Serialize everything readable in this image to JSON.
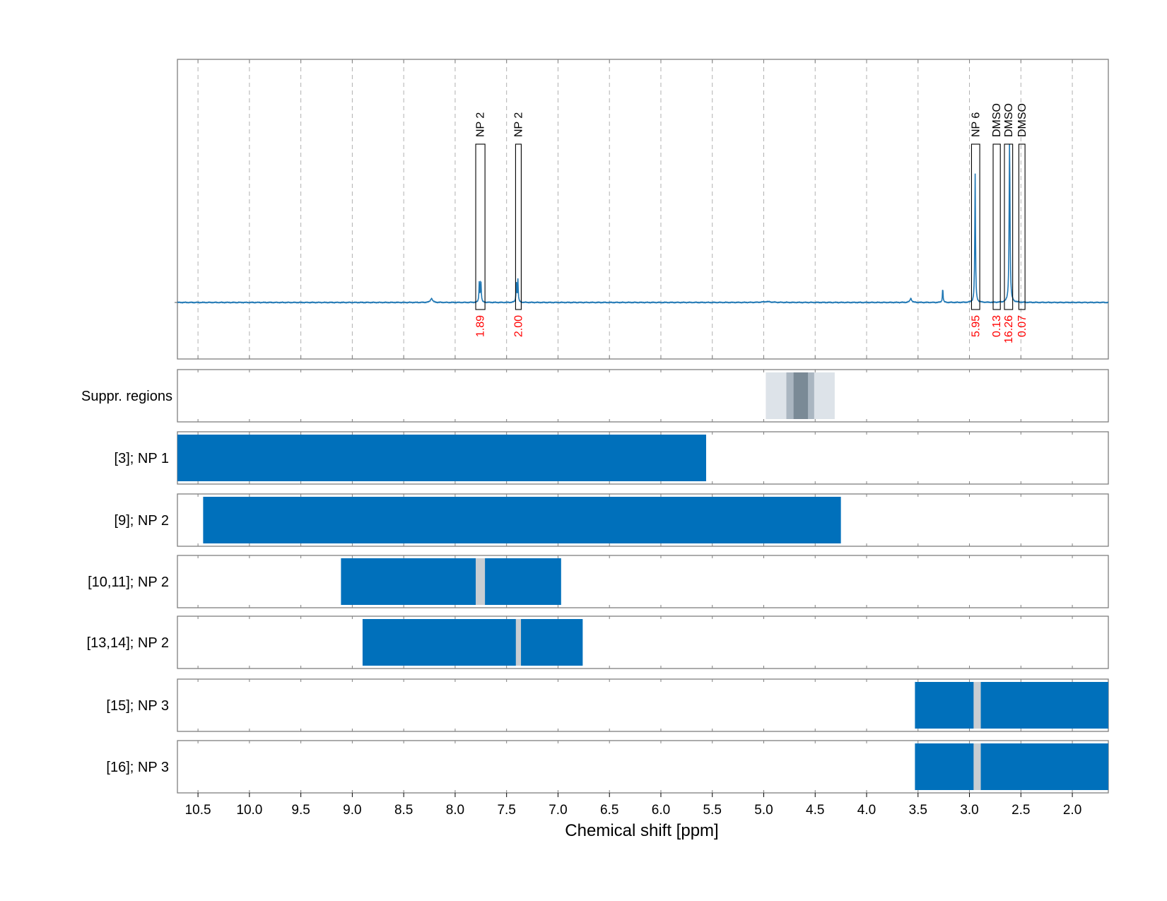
{
  "chart_data": {
    "type": "nmr-spectrum",
    "xlabel": "Chemical shift [ppm]",
    "xlim": [
      10.7,
      1.65
    ],
    "x_ticks": [
      "10.5",
      "10.0",
      "9.5",
      "9.0",
      "8.5",
      "8.0",
      "7.5",
      "7.0",
      "6.5",
      "6.0",
      "5.5",
      "5.0",
      "4.5",
      "4.0",
      "3.5",
      "3.0",
      "2.5",
      "2.0"
    ],
    "grid": "dashed vertical",
    "colors": {
      "spectrum": "#1f77b4",
      "bar": "#0070bb",
      "gap": "#c8cdd2",
      "integral": "#ff0000",
      "suppr_outer": "#dde3e9",
      "suppr_mid": "#aab6c1",
      "suppr_core": "#7a8a96"
    },
    "spectrum": {
      "baseline": 0,
      "peaks": [
        {
          "ppm": 8.23,
          "height": 0.02,
          "width": 0.012
        },
        {
          "ppm": 7.765,
          "height": 0.1,
          "width": 0.004
        },
        {
          "ppm": 7.75,
          "height": 0.11,
          "width": 0.004
        },
        {
          "ppm": 7.405,
          "height": 0.1,
          "width": 0.004
        },
        {
          "ppm": 7.39,
          "height": 0.11,
          "width": 0.004
        },
        {
          "ppm": 4.97,
          "height": 0.004,
          "width": 0.05
        },
        {
          "ppm": 3.57,
          "height": 0.02,
          "width": 0.01
        },
        {
          "ppm": 3.26,
          "height": 0.07,
          "width": 0.004
        },
        {
          "ppm": 2.945,
          "height": 0.63,
          "width": 0.004
        },
        {
          "ppm": 2.61,
          "height": 0.79,
          "width": 0.005
        }
      ]
    },
    "annotations": [
      {
        "label": "NP 2",
        "ppm_min": 7.71,
        "ppm_max": 7.8,
        "integral": "1.89"
      },
      {
        "label": "NP 2",
        "ppm_min": 7.36,
        "ppm_max": 7.41,
        "integral": "2.00"
      },
      {
        "label": "NP 6",
        "ppm_min": 2.9,
        "ppm_max": 2.98,
        "integral": "5.95"
      },
      {
        "label": "DMSO",
        "ppm_min": 2.7,
        "ppm_max": 2.77,
        "integral": "0.13"
      },
      {
        "label": "DMSO",
        "ppm_min": 2.58,
        "ppm_max": 2.66,
        "integral": "16.26"
      },
      {
        "label": "DMSO",
        "ppm_min": 2.46,
        "ppm_max": 2.52,
        "integral": "0.07"
      }
    ],
    "suppression": {
      "label": "Suppr. regions",
      "layers": [
        {
          "ppm_min": 4.31,
          "ppm_max": 4.98,
          "level": "outer"
        },
        {
          "ppm_min": 4.51,
          "ppm_max": 4.78,
          "level": "mid"
        },
        {
          "ppm_min": 4.57,
          "ppm_max": 4.71,
          "level": "core"
        }
      ]
    },
    "ranges": [
      {
        "label": "[3]; NP 1",
        "ppm_min": 5.56,
        "ppm_max": 10.7,
        "gap": null
      },
      {
        "label": "[9]; NP 2",
        "ppm_min": 4.25,
        "ppm_max": 10.45,
        "gap": null
      },
      {
        "label": "[10,11]; NP 2",
        "ppm_min": 6.97,
        "ppm_max": 9.11,
        "gap": [
          7.71,
          7.8
        ]
      },
      {
        "label": "[13,14]; NP 2",
        "ppm_min": 6.76,
        "ppm_max": 8.9,
        "gap": [
          7.36,
          7.41
        ]
      },
      {
        "label": "[15]; NP 3",
        "ppm_min": 1.65,
        "ppm_max": 3.53,
        "gap": [
          2.89,
          2.96
        ]
      },
      {
        "label": "[16]; NP 3",
        "ppm_min": 1.65,
        "ppm_max": 3.53,
        "gap": [
          2.89,
          2.96
        ]
      }
    ]
  }
}
